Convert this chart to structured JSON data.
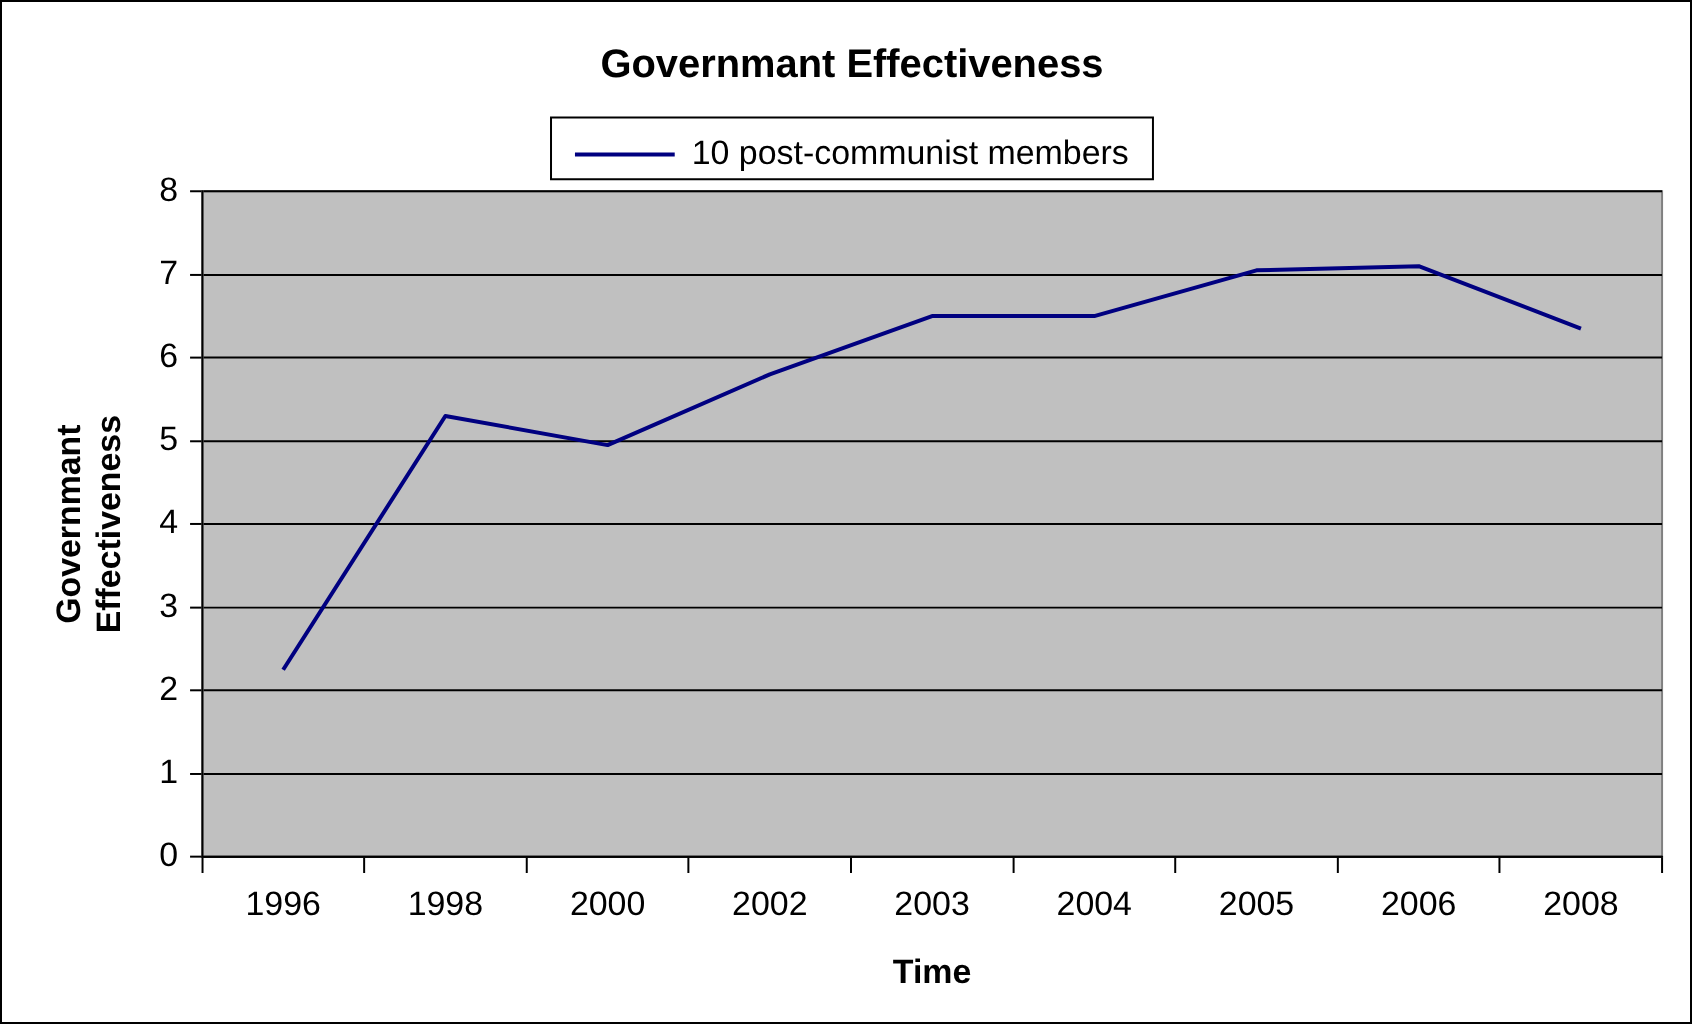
{
  "chart_data": {
    "type": "line",
    "title": "Governmant Effectiveness",
    "xlabel": "Time",
    "ylabel": "Governmant Effectiveness",
    "categories": [
      "1996",
      "1998",
      "2000",
      "2002",
      "2003",
      "2004",
      "2005",
      "2006",
      "2008"
    ],
    "series": [
      {
        "name": "10 post-communist members",
        "color": "#000080",
        "values": [
          2.25,
          5.3,
          4.95,
          5.8,
          6.5,
          6.5,
          7.05,
          7.1,
          6.35
        ]
      }
    ],
    "ylim": [
      0,
      8
    ],
    "yticks": [
      0,
      1,
      2,
      3,
      4,
      5,
      6,
      7,
      8
    ],
    "grid": "y",
    "legend": "top",
    "marker": "none",
    "line_style": "solid"
  }
}
